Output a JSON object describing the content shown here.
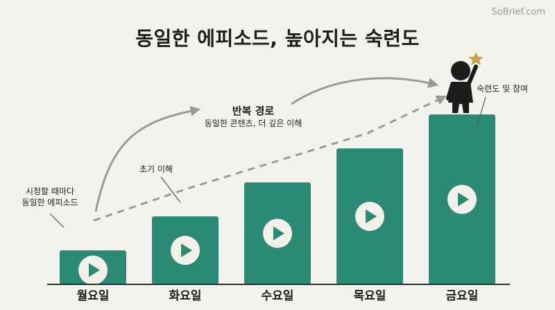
{
  "brand": "SoBrief.com",
  "title": "동일한 에피소드, 높아지는 숙련도",
  "colors": {
    "background": "#f3f2ec",
    "bar": "#2a8a75",
    "play_circle": "#f1f1ea",
    "arrow": "#9a9a92",
    "star": "#c9a24a"
  },
  "annotations": {
    "start_line1": "시청할 때마다",
    "start_line2": "동일한 에피소드",
    "early": "초기 이해",
    "path_title": "반복 경로",
    "path_sub": "동일한 콘텐츠, 더 깊은 이해",
    "top": "숙련도 및 참여"
  },
  "icons": [
    "play-icon",
    "child-silhouette-icon",
    "star-icon"
  ],
  "chart_data": {
    "type": "bar",
    "categories": [
      "월요일",
      "화요일",
      "수요일",
      "목요일",
      "금요일"
    ],
    "values": [
      1,
      2,
      3,
      4,
      5
    ]
  }
}
